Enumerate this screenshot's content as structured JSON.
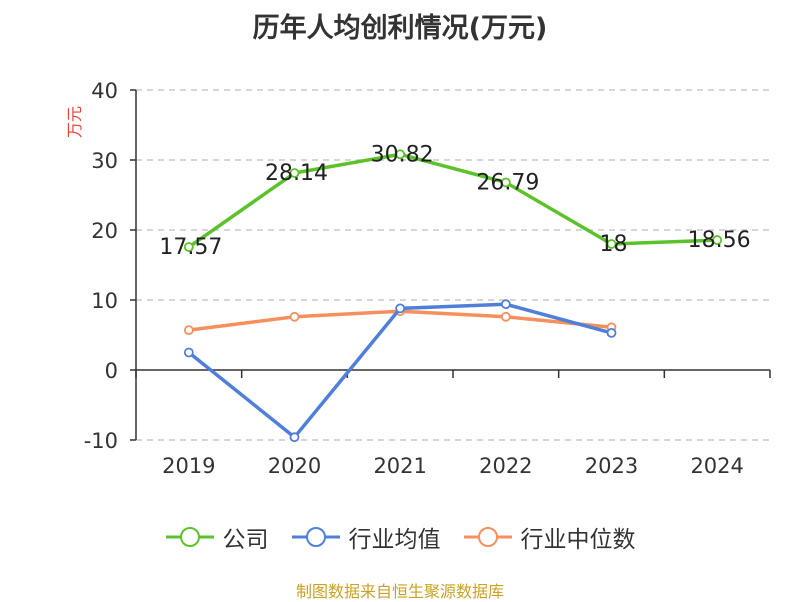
{
  "chart_data": {
    "type": "line",
    "title": "历年人均创利情况(万元)",
    "ylabel": "万元",
    "xlabel": "",
    "categories": [
      "2019",
      "2020",
      "2021",
      "2022",
      "2023",
      "2024"
    ],
    "ylim": [
      -10,
      40
    ],
    "yticks": [
      -10,
      0,
      10,
      20,
      30,
      40
    ],
    "grid": true,
    "legend_position": "bottom",
    "series": [
      {
        "name": "公司",
        "color": "#5cc22b",
        "values": [
          17.57,
          28.14,
          30.82,
          26.79,
          18,
          18.56
        ],
        "labels": [
          "17.57",
          "28.14",
          "30.82",
          "26.79",
          "18",
          "18.56"
        ]
      },
      {
        "name": "行业均值",
        "color": "#4f7fd8",
        "values": [
          2.5,
          -9.6,
          8.8,
          9.4,
          5.3,
          null
        ]
      },
      {
        "name": "行业中位数",
        "color": "#f78f5c",
        "values": [
          5.7,
          7.6,
          8.4,
          7.6,
          6.1,
          null
        ]
      }
    ],
    "source": "制图数据来自恒生聚源数据库"
  }
}
